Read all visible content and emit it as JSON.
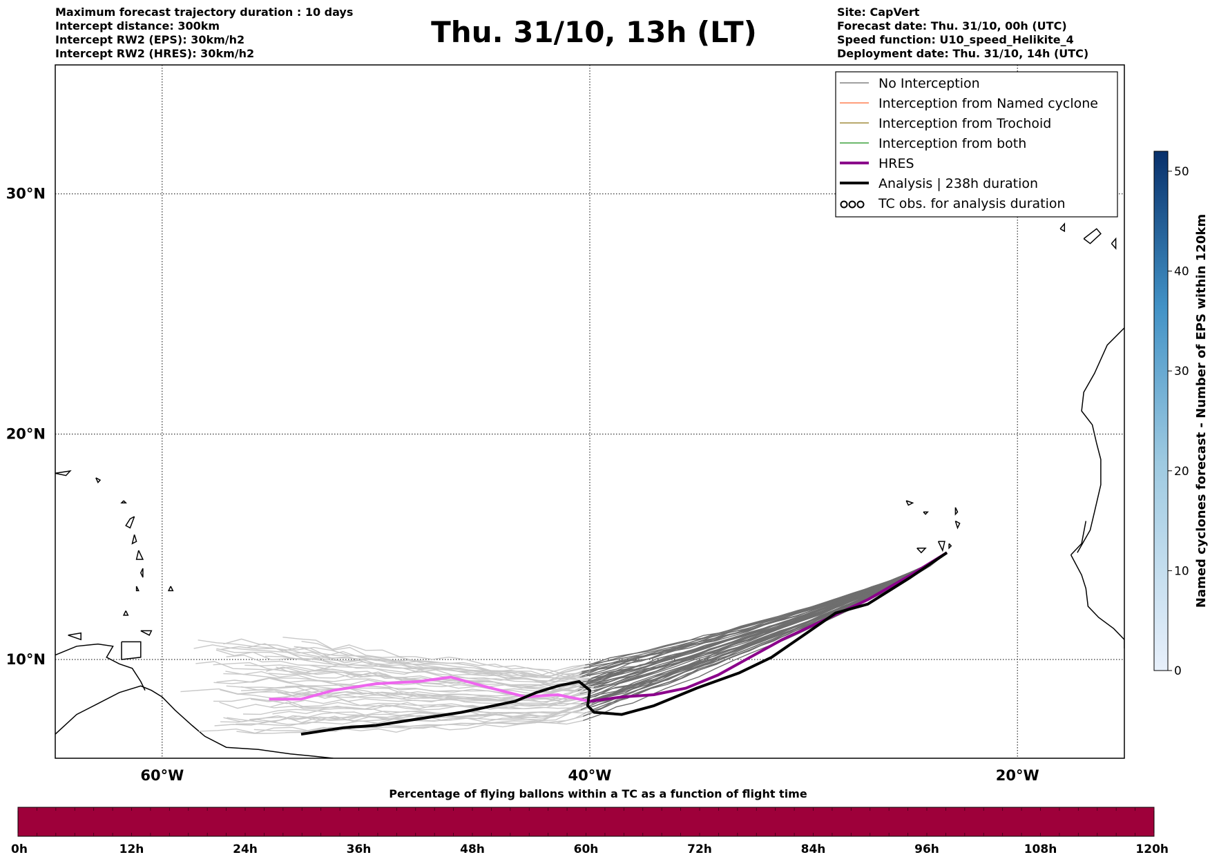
{
  "header": {
    "left_lines": [
      "Maximum forecast trajectory duration : 10 days",
      "Intercept distance: 300km",
      "Intercept RW2 (EPS):  30km/h2",
      "Intercept RW2 (HRES): 30km/h2"
    ],
    "title": "Thu. 31/10, 13h (LT)",
    "right_lines": [
      "Site: CapVert",
      "Forecast date: Thu. 31/10, 00h (UTC)",
      "Speed function: U10_speed_Helikite_4",
      "Deployment date: Thu. 31/10, 14h (UTC)"
    ]
  },
  "map": {
    "extent": {
      "lon": [
        -65,
        -15
      ],
      "lat": [
        5.5,
        35
      ]
    },
    "lat_ticks": [
      {
        "value": 10,
        "label": "10°N"
      },
      {
        "value": 20,
        "label": "20°N"
      },
      {
        "value": 30,
        "label": "30°N"
      }
    ],
    "lon_ticks": [
      {
        "value": -60,
        "label": "60°W"
      },
      {
        "value": -40,
        "label": "40°W"
      },
      {
        "value": -20,
        "label": "20°W"
      }
    ],
    "grid": true
  },
  "legend": {
    "placement": "top-right",
    "items": [
      {
        "label": "No Interception",
        "color": "#808080",
        "style": "thin"
      },
      {
        "label": "Interception from Named cyclone",
        "color": "#ff7f50",
        "style": "thin"
      },
      {
        "label": "Interception from Trochoid",
        "color": "#a08c3c",
        "style": "thin"
      },
      {
        "label": "Interception from both",
        "color": "#3ca03c",
        "style": "thin"
      },
      {
        "label": "HRES",
        "color": "#8b008b",
        "style": "thick"
      },
      {
        "label": "Analysis | 238h duration",
        "color": "#000000",
        "style": "thick"
      },
      {
        "label": "TC obs. for analysis duration",
        "color": "#000000",
        "style": "symbol",
        "symbol": "ooo"
      }
    ]
  },
  "tracks": {
    "start": [
      -23.3,
      14.8
    ],
    "hres": [
      [
        -23.3,
        14.8
      ],
      [
        -25,
        13.8
      ],
      [
        -27,
        12.7
      ],
      [
        -29,
        11.8
      ],
      [
        -31,
        10.9
      ],
      [
        -32.5,
        10.1
      ],
      [
        -34,
        9.3
      ],
      [
        -35.5,
        8.7
      ],
      [
        -37,
        8.4
      ],
      [
        -38.5,
        8.3
      ],
      [
        -40,
        8.1
      ],
      [
        -41.5,
        8.4
      ],
      [
        -43,
        8.3
      ],
      [
        -45,
        8.8
      ],
      [
        -46.5,
        9.2
      ],
      [
        -48,
        9.0
      ],
      [
        -50,
        8.9
      ],
      [
        -52,
        8.6
      ],
      [
        -53.5,
        8.2
      ],
      [
        -55,
        8.2
      ]
    ],
    "analysis": [
      [
        -23.3,
        14.8
      ],
      [
        -25,
        13.7
      ],
      [
        -27,
        12.5
      ],
      [
        -28.5,
        12.1
      ],
      [
        -30,
        11.1
      ],
      [
        -31.5,
        10.1
      ],
      [
        -33,
        9.4
      ],
      [
        -35,
        8.7
      ],
      [
        -37,
        7.9
      ],
      [
        -38.5,
        7.5
      ],
      [
        -39.8,
        7.6
      ],
      [
        -40.1,
        7.9
      ],
      [
        -40,
        8.6
      ],
      [
        -40.5,
        9.0
      ],
      [
        -41.5,
        8.8
      ],
      [
        -42.5,
        8.5
      ],
      [
        -43.5,
        8.1
      ],
      [
        -46,
        7.6
      ],
      [
        -48,
        7.3
      ],
      [
        -50,
        7.0
      ],
      [
        -51.5,
        6.9
      ],
      [
        -53.5,
        6.6
      ]
    ],
    "tc_obs": []
  },
  "colorbar_right": {
    "label": "Named cyclones forecast - Number of EPS within 120km",
    "ticks": [
      0,
      10,
      20,
      30,
      40,
      50
    ],
    "range": [
      0,
      52
    ],
    "color_low": "#e8f0fb",
    "color_high": "#08306b"
  },
  "colorbar_bottom": {
    "title": "Percentage of flying ballons within a TC as a function of flight time",
    "ticks": [
      "0h",
      "12h",
      "24h",
      "36h",
      "48h",
      "60h",
      "72h",
      "84h",
      "96h",
      "108h",
      "120h"
    ],
    "color": "#9e003a"
  },
  "colors": {
    "eps_far": "#c8c8c8",
    "eps_near": "#6e6e6e",
    "hres_far": "#ee66ee",
    "hres_near": "#8b008b",
    "analysis": "#000000",
    "coast": "#000000"
  }
}
